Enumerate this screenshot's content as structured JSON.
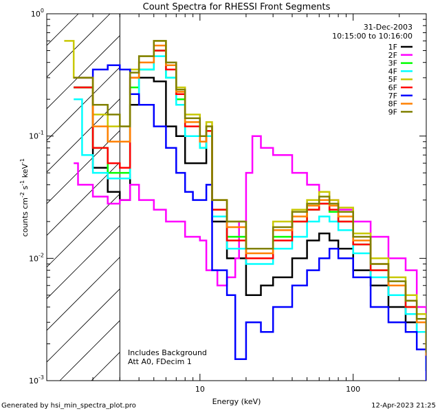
{
  "chart_data": {
    "type": "line",
    "title": "Count Spectra for RHESSI Front Segments",
    "xlabel": "Energy (keV)",
    "ylabel": "counts cm^-2 s^-1 keV^-1",
    "xscale": "log",
    "yscale": "log",
    "xlim": [
      1,
      300
    ],
    "ylim": [
      0.001,
      1
    ],
    "x_ticks": [
      {
        "value": 10,
        "label": "10"
      },
      {
        "value": 100,
        "label": "100"
      }
    ],
    "y_ticks": [
      {
        "value": 1,
        "base": "10",
        "exp": "0"
      },
      {
        "value": 0.1,
        "base": "10",
        "exp": "-1"
      },
      {
        "value": 0.01,
        "base": "10",
        "exp": "-2"
      },
      {
        "value": 0.001,
        "base": "10",
        "exp": "-3"
      }
    ],
    "date": "31-Dec-2003",
    "time_range": "10:15:00 to 10:16:00",
    "shaded_region": {
      "x_from": 1,
      "x_to": 3,
      "pattern": "diagonal hatching"
    },
    "annotations": [
      "Includes Background",
      "Att A0, FDecim 1"
    ],
    "series": [
      {
        "name": "1F",
        "color": "#000000",
        "points": [
          [
            1.5,
            0.25
          ],
          [
            2,
            0.055
          ],
          [
            2.5,
            0.035
          ],
          [
            3,
            0.03
          ],
          [
            3.5,
            0.18
          ],
          [
            4,
            0.3
          ],
          [
            5,
            0.28
          ],
          [
            6,
            0.12
          ],
          [
            7,
            0.1
          ],
          [
            8,
            0.06
          ],
          [
            10,
            0.06
          ],
          [
            11,
            0.1
          ],
          [
            12,
            0.02
          ],
          [
            15,
            0.01
          ],
          [
            20,
            0.005
          ],
          [
            25,
            0.006
          ],
          [
            30,
            0.007
          ],
          [
            40,
            0.01
          ],
          [
            50,
            0.014
          ],
          [
            60,
            0.016
          ],
          [
            70,
            0.014
          ],
          [
            80,
            0.012
          ],
          [
            100,
            0.008
          ],
          [
            130,
            0.006
          ],
          [
            170,
            0.004
          ],
          [
            220,
            0.003
          ],
          [
            260,
            0.0025
          ],
          [
            300,
            0.0012
          ]
        ]
      },
      {
        "name": "2F",
        "color": "#ff00ff",
        "points": [
          [
            1.5,
            0.06
          ],
          [
            1.6,
            0.04
          ],
          [
            2,
            0.032
          ],
          [
            2.5,
            0.028
          ],
          [
            3,
            0.03
          ],
          [
            3.5,
            0.04
          ],
          [
            4,
            0.03
          ],
          [
            5,
            0.025
          ],
          [
            6,
            0.02
          ],
          [
            7,
            0.02
          ],
          [
            8,
            0.015
          ],
          [
            10,
            0.014
          ],
          [
            11,
            0.008
          ],
          [
            13,
            0.006
          ],
          [
            15,
            0.007
          ],
          [
            17,
            0.01
          ],
          [
            18,
            0.02
          ],
          [
            20,
            0.05
          ],
          [
            22,
            0.1
          ],
          [
            25,
            0.08
          ],
          [
            30,
            0.07
          ],
          [
            40,
            0.05
          ],
          [
            50,
            0.04
          ],
          [
            60,
            0.035
          ],
          [
            70,
            0.03
          ],
          [
            80,
            0.025
          ],
          [
            100,
            0.02
          ],
          [
            130,
            0.015
          ],
          [
            170,
            0.01
          ],
          [
            220,
            0.008
          ],
          [
            260,
            0.004
          ],
          [
            300,
            0.0025
          ]
        ]
      },
      {
        "name": "3F",
        "color": "#00ff00",
        "points": [
          [
            1.5,
            0.25
          ],
          [
            2,
            0.08
          ],
          [
            2.5,
            0.05
          ],
          [
            3,
            0.05
          ],
          [
            3.5,
            0.25
          ],
          [
            4,
            0.35
          ],
          [
            5,
            0.5
          ],
          [
            6,
            0.3
          ],
          [
            7,
            0.2
          ],
          [
            8,
            0.1
          ],
          [
            10,
            0.08
          ],
          [
            11,
            0.12
          ],
          [
            12,
            0.025
          ],
          [
            15,
            0.015
          ],
          [
            20,
            0.01
          ],
          [
            30,
            0.015
          ],
          [
            40,
            0.02
          ],
          [
            50,
            0.025
          ],
          [
            60,
            0.028
          ],
          [
            70,
            0.024
          ],
          [
            80,
            0.02
          ],
          [
            100,
            0.013
          ],
          [
            130,
            0.008
          ],
          [
            170,
            0.006
          ],
          [
            220,
            0.004
          ],
          [
            260,
            0.003
          ],
          [
            300,
            0.0015
          ]
        ]
      },
      {
        "name": "4F",
        "color": "#00ffff",
        "points": [
          [
            1.5,
            0.2
          ],
          [
            1.7,
            0.07
          ],
          [
            2,
            0.05
          ],
          [
            2.5,
            0.045
          ],
          [
            3,
            0.045
          ],
          [
            3.5,
            0.22
          ],
          [
            4,
            0.35
          ],
          [
            5,
            0.45
          ],
          [
            6,
            0.3
          ],
          [
            7,
            0.18
          ],
          [
            8,
            0.1
          ],
          [
            10,
            0.08
          ],
          [
            11,
            0.1
          ],
          [
            12,
            0.022
          ],
          [
            15,
            0.012
          ],
          [
            20,
            0.009
          ],
          [
            30,
            0.012
          ],
          [
            40,
            0.015
          ],
          [
            50,
            0.02
          ],
          [
            60,
            0.022
          ],
          [
            70,
            0.02
          ],
          [
            80,
            0.017
          ],
          [
            100,
            0.011
          ],
          [
            130,
            0.007
          ],
          [
            170,
            0.005
          ],
          [
            220,
            0.0035
          ],
          [
            260,
            0.0025
          ],
          [
            300,
            0.0012
          ]
        ]
      },
      {
        "name": "5F",
        "color": "#c8c800",
        "points": [
          [
            1.3,
            0.6
          ],
          [
            1.5,
            0.3
          ],
          [
            2,
            0.15
          ],
          [
            2.5,
            0.12
          ],
          [
            3,
            0.12
          ],
          [
            3.5,
            0.35
          ],
          [
            4,
            0.45
          ],
          [
            5,
            0.6
          ],
          [
            6,
            0.4
          ],
          [
            7,
            0.25
          ],
          [
            8,
            0.15
          ],
          [
            10,
            0.1
          ],
          [
            11,
            0.13
          ],
          [
            12,
            0.03
          ],
          [
            15,
            0.02
          ],
          [
            20,
            0.012
          ],
          [
            30,
            0.02
          ],
          [
            40,
            0.025
          ],
          [
            50,
            0.03
          ],
          [
            60,
            0.035
          ],
          [
            70,
            0.03
          ],
          [
            80,
            0.026
          ],
          [
            100,
            0.016
          ],
          [
            130,
            0.01
          ],
          [
            170,
            0.007
          ],
          [
            220,
            0.005
          ],
          [
            260,
            0.0035
          ],
          [
            300,
            0.0018
          ]
        ]
      },
      {
        "name": "6F",
        "color": "#ff0000",
        "points": [
          [
            1.5,
            0.25
          ],
          [
            2,
            0.08
          ],
          [
            2.5,
            0.06
          ],
          [
            3,
            0.055
          ],
          [
            3.5,
            0.3
          ],
          [
            4,
            0.4
          ],
          [
            5,
            0.5
          ],
          [
            6,
            0.35
          ],
          [
            7,
            0.22
          ],
          [
            8,
            0.12
          ],
          [
            10,
            0.09
          ],
          [
            11,
            0.11
          ],
          [
            12,
            0.025
          ],
          [
            15,
            0.014
          ],
          [
            20,
            0.01
          ],
          [
            30,
            0.014
          ],
          [
            40,
            0.02
          ],
          [
            50,
            0.025
          ],
          [
            60,
            0.028
          ],
          [
            70,
            0.025
          ],
          [
            80,
            0.02
          ],
          [
            100,
            0.013
          ],
          [
            130,
            0.008
          ],
          [
            170,
            0.006
          ],
          [
            220,
            0.004
          ],
          [
            260,
            0.003
          ],
          [
            300,
            0.0015
          ]
        ]
      },
      {
        "name": "7F",
        "color": "#0000ff",
        "points": [
          [
            1.5,
            0.3
          ],
          [
            2,
            0.35
          ],
          [
            2.5,
            0.38
          ],
          [
            3,
            0.35
          ],
          [
            3.5,
            0.22
          ],
          [
            4,
            0.18
          ],
          [
            5,
            0.12
          ],
          [
            6,
            0.08
          ],
          [
            7,
            0.05
          ],
          [
            8,
            0.035
          ],
          [
            9,
            0.03
          ],
          [
            10,
            0.03
          ],
          [
            11,
            0.04
          ],
          [
            12,
            0.008
          ],
          [
            15,
            0.005
          ],
          [
            17,
            0.0015
          ],
          [
            20,
            0.003
          ],
          [
            25,
            0.0025
          ],
          [
            30,
            0.004
          ],
          [
            40,
            0.006
          ],
          [
            50,
            0.008
          ],
          [
            60,
            0.01
          ],
          [
            70,
            0.012
          ],
          [
            80,
            0.01
          ],
          [
            100,
            0.007
          ],
          [
            130,
            0.004
          ],
          [
            170,
            0.003
          ],
          [
            220,
            0.0025
          ],
          [
            260,
            0.0018
          ],
          [
            300,
            0.001
          ]
        ]
      },
      {
        "name": "8F",
        "color": "#ff8000",
        "points": [
          [
            1.5,
            0.3
          ],
          [
            2,
            0.12
          ],
          [
            2.5,
            0.09
          ],
          [
            3,
            0.09
          ],
          [
            3.5,
            0.3
          ],
          [
            4,
            0.4
          ],
          [
            5,
            0.55
          ],
          [
            6,
            0.38
          ],
          [
            7,
            0.23
          ],
          [
            8,
            0.13
          ],
          [
            10,
            0.09
          ],
          [
            11,
            0.12
          ],
          [
            12,
            0.03
          ],
          [
            15,
            0.018
          ],
          [
            20,
            0.011
          ],
          [
            30,
            0.017
          ],
          [
            40,
            0.022
          ],
          [
            50,
            0.027
          ],
          [
            60,
            0.03
          ],
          [
            70,
            0.027
          ],
          [
            80,
            0.022
          ],
          [
            100,
            0.014
          ],
          [
            130,
            0.009
          ],
          [
            170,
            0.006
          ],
          [
            220,
            0.0045
          ],
          [
            260,
            0.003
          ],
          [
            300,
            0.0016
          ]
        ]
      },
      {
        "name": "9F",
        "color": "#808000",
        "points": [
          [
            1.5,
            0.3
          ],
          [
            2,
            0.18
          ],
          [
            2.5,
            0.15
          ],
          [
            3,
            0.12
          ],
          [
            3.5,
            0.33
          ],
          [
            4,
            0.45
          ],
          [
            5,
            0.6
          ],
          [
            6,
            0.4
          ],
          [
            7,
            0.24
          ],
          [
            8,
            0.14
          ],
          [
            10,
            0.1
          ],
          [
            11,
            0.12
          ],
          [
            12,
            0.03
          ],
          [
            15,
            0.02
          ],
          [
            20,
            0.012
          ],
          [
            30,
            0.018
          ],
          [
            40,
            0.024
          ],
          [
            50,
            0.028
          ],
          [
            60,
            0.032
          ],
          [
            70,
            0.028
          ],
          [
            80,
            0.024
          ],
          [
            100,
            0.015
          ],
          [
            130,
            0.009
          ],
          [
            170,
            0.0065
          ],
          [
            220,
            0.0045
          ],
          [
            260,
            0.0032
          ],
          [
            300,
            0.0017
          ]
        ]
      }
    ]
  },
  "footer": {
    "left": "Generated by hsi_min_spectra_plot.pro",
    "right": "12-Apr-2023 21:25"
  }
}
